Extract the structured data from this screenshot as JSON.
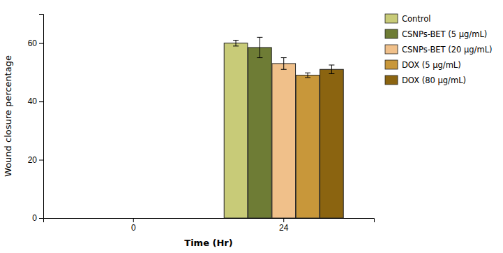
{
  "chart_data": {
    "type": "bar",
    "categories": [
      "0",
      "24"
    ],
    "xlabel": "Time (Hr)",
    "ylabel": "Wound closure percentage",
    "series": [
      {
        "name": "Control",
        "color": "#c8cb78",
        "values": [
          null,
          60.0
        ],
        "errors": [
          null,
          1.0
        ]
      },
      {
        "name": "CSNPs-BET (5 μg/mL)",
        "color": "#6e7c35",
        "values": [
          null,
          58.5
        ],
        "errors": [
          null,
          3.5
        ]
      },
      {
        "name": "CSNPs-BET (20 μg/mL)",
        "color": "#f0c08a",
        "values": [
          null,
          53.0
        ],
        "errors": [
          null,
          2.0
        ]
      },
      {
        "name": "DOX (5 μg/mL)",
        "color": "#c8973a",
        "values": [
          null,
          49.0
        ],
        "errors": [
          null,
          0.8
        ]
      },
      {
        "name": "DOX (80 μg/mL)",
        "color": "#8b6410",
        "values": [
          null,
          51.0
        ],
        "errors": [
          null,
          1.5
        ]
      }
    ],
    "ylim": [
      0,
      70
    ],
    "yticks": [
      0,
      20,
      40,
      60
    ],
    "grid": false,
    "legend": "right"
  }
}
